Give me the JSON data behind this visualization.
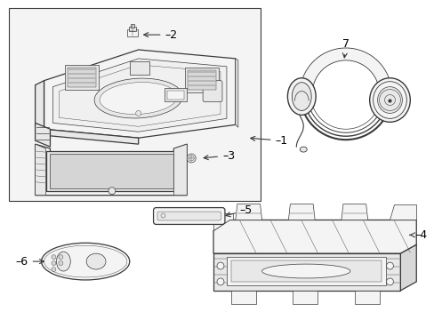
{
  "bg_color": "#ffffff",
  "box_bg": "#ebebeb",
  "lc": "#3a3a3a",
  "tc": "#000000",
  "lw_main": 0.9,
  "lw_detail": 0.5,
  "lw_thin": 0.3
}
